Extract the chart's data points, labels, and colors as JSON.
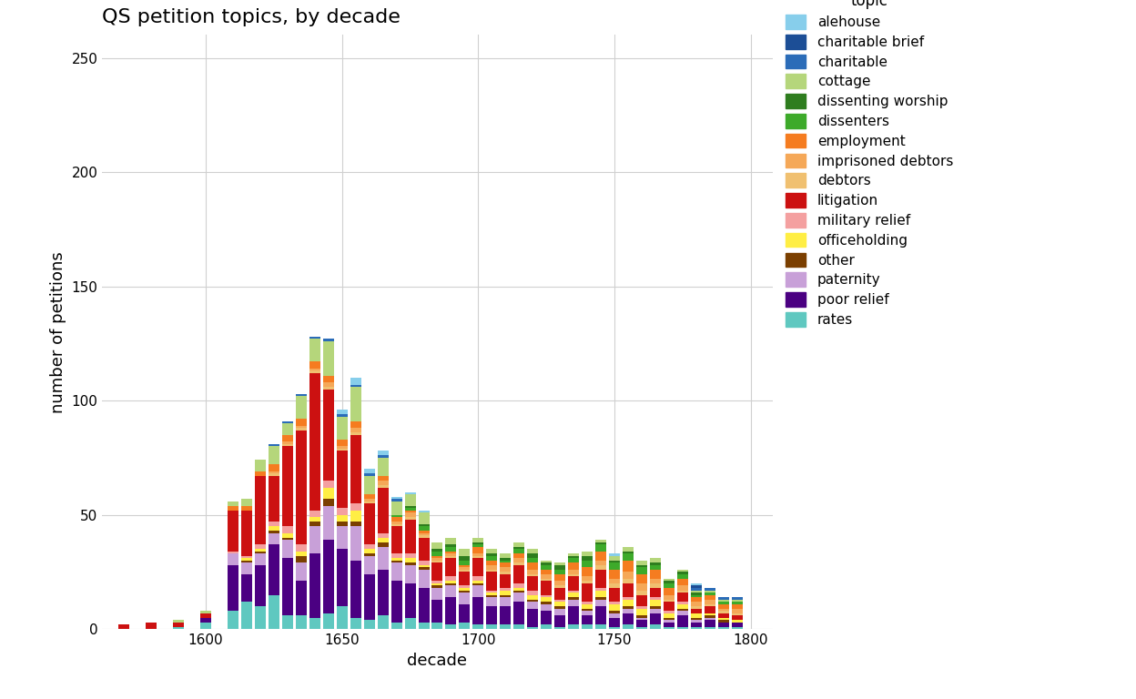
{
  "title": "QS petition topics, by decade",
  "xlabel": "decade",
  "ylabel": "number of petitions",
  "legend_title": "topic",
  "decades": [
    1570,
    1580,
    1590,
    1600,
    1610,
    1615,
    1620,
    1625,
    1630,
    1635,
    1640,
    1645,
    1650,
    1655,
    1660,
    1665,
    1670,
    1675,
    1680,
    1685,
    1690,
    1695,
    1700,
    1705,
    1710,
    1715,
    1720,
    1725,
    1730,
    1735,
    1740,
    1745,
    1750,
    1755,
    1760,
    1765,
    1770,
    1775,
    1780,
    1785,
    1790,
    1795
  ],
  "topics": [
    "rates",
    "poor relief",
    "paternity",
    "other",
    "officeholding",
    "military relief",
    "litigation",
    "debtors",
    "imprisoned debtors",
    "employment",
    "dissenters",
    "dissenting worship",
    "cottage",
    "charitable",
    "charitable brief",
    "alehouse"
  ],
  "colors": {
    "alehouse": "#87CEEB",
    "charitable brief": "#1C4E96",
    "charitable": "#2B6CB8",
    "cottage": "#B5D67B",
    "dissenting worship": "#2E7D1E",
    "dissenters": "#3DAA2A",
    "employment": "#F57C20",
    "imprisoned debtors": "#F5A858",
    "debtors": "#F0C070",
    "litigation": "#CC1111",
    "military relief": "#F4A0A0",
    "officeholding": "#FFEE44",
    "other": "#7B3F00",
    "paternity": "#C8A0D8",
    "poor relief": "#4B0082",
    "rates": "#5FC8C0"
  },
  "data": {
    "rates": [
      0,
      0,
      1,
      3,
      8,
      12,
      10,
      15,
      6,
      6,
      5,
      7,
      10,
      5,
      4,
      6,
      3,
      5,
      3,
      3,
      2,
      3,
      2,
      2,
      2,
      2,
      1,
      2,
      1,
      2,
      2,
      2,
      1,
      2,
      1,
      2,
      1,
      1,
      1,
      1,
      1,
      1
    ],
    "poor relief": [
      0,
      0,
      0,
      2,
      20,
      12,
      18,
      22,
      25,
      15,
      28,
      32,
      25,
      25,
      20,
      20,
      18,
      15,
      15,
      10,
      12,
      8,
      12,
      8,
      8,
      10,
      8,
      6,
      5,
      8,
      4,
      8,
      4,
      5,
      3,
      5,
      2,
      5,
      2,
      3,
      2,
      2
    ],
    "paternity": [
      0,
      0,
      0,
      0,
      5,
      5,
      5,
      5,
      8,
      8,
      12,
      15,
      10,
      15,
      8,
      10,
      8,
      8,
      8,
      5,
      5,
      5,
      5,
      4,
      4,
      4,
      3,
      3,
      3,
      3,
      2,
      3,
      2,
      2,
      1,
      2,
      1,
      2,
      1,
      1,
      0,
      0
    ],
    "other": [
      0,
      0,
      0,
      0,
      0,
      1,
      1,
      1,
      1,
      3,
      2,
      3,
      2,
      2,
      1,
      2,
      1,
      1,
      1,
      1,
      1,
      1,
      1,
      1,
      1,
      1,
      1,
      1,
      1,
      1,
      1,
      1,
      1,
      1,
      1,
      1,
      1,
      1,
      1,
      1,
      1,
      0
    ],
    "officeholding": [
      0,
      0,
      0,
      0,
      0,
      1,
      1,
      2,
      2,
      2,
      2,
      5,
      3,
      5,
      2,
      2,
      1,
      2,
      1,
      1,
      1,
      1,
      1,
      1,
      2,
      1,
      2,
      2,
      2,
      2,
      2,
      3,
      3,
      3,
      3,
      3,
      2,
      2,
      2,
      1,
      1,
      1
    ],
    "military relief": [
      0,
      0,
      0,
      0,
      1,
      1,
      2,
      2,
      3,
      3,
      3,
      3,
      3,
      3,
      2,
      2,
      2,
      2,
      2,
      1,
      2,
      1,
      2,
      1,
      1,
      2,
      2,
      1,
      1,
      1,
      1,
      1,
      1,
      1,
      1,
      1,
      1,
      1,
      0,
      0,
      0,
      0
    ],
    "litigation": [
      2,
      3,
      2,
      2,
      18,
      20,
      30,
      20,
      35,
      50,
      60,
      40,
      25,
      30,
      18,
      20,
      12,
      15,
      10,
      8,
      8,
      6,
      8,
      8,
      6,
      8,
      6,
      6,
      5,
      6,
      8,
      8,
      6,
      6,
      5,
      4,
      4,
      4,
      2,
      3,
      2,
      2
    ],
    "debtors": [
      0,
      0,
      0,
      0,
      0,
      0,
      0,
      1,
      1,
      1,
      1,
      1,
      1,
      1,
      1,
      1,
      1,
      1,
      1,
      1,
      1,
      1,
      1,
      1,
      1,
      1,
      1,
      1,
      1,
      1,
      1,
      2,
      2,
      2,
      2,
      2,
      1,
      1,
      1,
      1,
      1,
      1
    ],
    "imprisoned debtors": [
      0,
      0,
      0,
      0,
      0,
      0,
      0,
      1,
      1,
      1,
      1,
      2,
      1,
      2,
      1,
      2,
      1,
      2,
      1,
      1,
      1,
      1,
      1,
      2,
      2,
      2,
      2,
      2,
      2,
      2,
      2,
      2,
      2,
      3,
      3,
      2,
      2,
      2,
      2,
      2,
      1,
      2
    ],
    "employment": [
      0,
      0,
      0,
      0,
      2,
      2,
      2,
      3,
      3,
      3,
      3,
      3,
      3,
      3,
      2,
      2,
      2,
      1,
      1,
      1,
      1,
      1,
      3,
      2,
      2,
      2,
      3,
      2,
      3,
      3,
      4,
      4,
      4,
      5,
      4,
      4,
      3,
      3,
      2,
      2,
      2,
      2
    ],
    "dissenters": [
      0,
      0,
      0,
      0,
      0,
      0,
      0,
      0,
      0,
      0,
      0,
      0,
      0,
      0,
      0,
      0,
      1,
      1,
      2,
      2,
      2,
      2,
      1,
      2,
      1,
      2,
      2,
      2,
      2,
      2,
      3,
      3,
      3,
      3,
      3,
      2,
      2,
      2,
      1,
      1,
      1,
      1
    ],
    "dissenting worship": [
      0,
      0,
      0,
      0,
      0,
      0,
      0,
      0,
      0,
      0,
      0,
      0,
      0,
      0,
      0,
      0,
      0,
      1,
      1,
      1,
      1,
      2,
      1,
      1,
      1,
      1,
      2,
      1,
      2,
      1,
      2,
      1,
      1,
      1,
      1,
      1,
      1,
      1,
      1,
      0,
      0,
      0
    ],
    "cottage": [
      0,
      0,
      1,
      1,
      2,
      3,
      5,
      8,
      5,
      10,
      10,
      15,
      10,
      15,
      8,
      8,
      6,
      5,
      5,
      3,
      3,
      3,
      2,
      2,
      2,
      2,
      2,
      1,
      1,
      1,
      2,
      1,
      2,
      2,
      2,
      2,
      1,
      1,
      1,
      1,
      1,
      1
    ],
    "charitable": [
      0,
      0,
      0,
      0,
      0,
      0,
      0,
      1,
      1,
      1,
      1,
      1,
      1,
      1,
      1,
      1,
      1,
      0,
      0,
      0,
      0,
      0,
      0,
      0,
      0,
      0,
      0,
      0,
      0,
      0,
      0,
      0,
      0,
      0,
      0,
      0,
      0,
      0,
      1,
      1,
      1,
      1
    ],
    "charitable brief": [
      0,
      0,
      0,
      0,
      0,
      0,
      0,
      0,
      0,
      0,
      0,
      0,
      0,
      0,
      0,
      0,
      0,
      0,
      0,
      0,
      0,
      0,
      0,
      0,
      0,
      0,
      0,
      0,
      0,
      0,
      0,
      0,
      0,
      0,
      0,
      0,
      0,
      0,
      1,
      0,
      0,
      0
    ],
    "alehouse": [
      0,
      0,
      0,
      0,
      0,
      0,
      0,
      0,
      0,
      0,
      0,
      0,
      2,
      3,
      2,
      2,
      1,
      1,
      1,
      0,
      0,
      0,
      0,
      0,
      0,
      0,
      0,
      0,
      0,
      0,
      0,
      0,
      1,
      0,
      0,
      0,
      0,
      0,
      1,
      0,
      0,
      0
    ]
  }
}
